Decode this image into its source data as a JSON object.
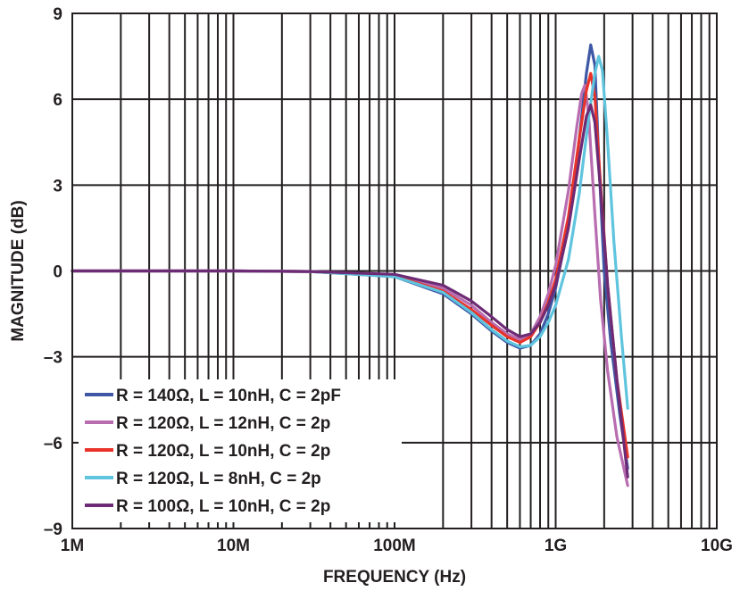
{
  "chart_data": {
    "type": "line",
    "title": "",
    "xlabel": "FREQUENCY (Hz)",
    "ylabel": "MAGNITUDE (dB)",
    "x_scale": "log",
    "xlim": [
      1000000,
      10000000000
    ],
    "ylim": [
      -9,
      9
    ],
    "grid": true,
    "legend_position": "bottom-left",
    "x_ticks": [
      {
        "value": 1000000,
        "label": "1M"
      },
      {
        "value": 10000000,
        "label": "10M"
      },
      {
        "value": 100000000,
        "label": "100M"
      },
      {
        "value": 1000000000,
        "label": "1G"
      },
      {
        "value": 10000000000,
        "label": "10G"
      }
    ],
    "y_ticks": [
      {
        "value": 9,
        "label": "9"
      },
      {
        "value": 6,
        "label": "6"
      },
      {
        "value": 3,
        "label": "3"
      },
      {
        "value": 0,
        "label": "0"
      },
      {
        "value": -3,
        "label": "–3"
      },
      {
        "value": -6,
        "label": "–6"
      },
      {
        "value": -9,
        "label": "–9"
      }
    ],
    "series": [
      {
        "name": "R = 140Ω, L = 10nH, C = 2pF",
        "color": "#3e58a6",
        "points": [
          [
            1000000,
            0
          ],
          [
            10000000,
            0
          ],
          [
            30000000,
            -0.02
          ],
          [
            100000000,
            -0.2
          ],
          [
            200000000,
            -0.8
          ],
          [
            300000000,
            -1.5
          ],
          [
            400000000,
            -2.1
          ],
          [
            500000000,
            -2.5
          ],
          [
            600000000,
            -2.7
          ],
          [
            700000000,
            -2.6
          ],
          [
            800000000,
            -2.2
          ],
          [
            900000000,
            -1.5
          ],
          [
            1000000000,
            -0.6
          ],
          [
            1200000000,
            1.6
          ],
          [
            1400000000,
            4.6
          ],
          [
            1550000000,
            6.9
          ],
          [
            1650000000,
            7.9
          ],
          [
            1750000000,
            7.2
          ],
          [
            1850000000,
            4.0
          ],
          [
            2000000000,
            0.0
          ],
          [
            2200000000,
            -2.5
          ],
          [
            2500000000,
            -5.0
          ],
          [
            2800000000,
            -6.9
          ]
        ]
      },
      {
        "name": "R = 120Ω, L = 12nH, C = 2p",
        "color": "#b86db0",
        "points": [
          [
            1000000,
            0
          ],
          [
            10000000,
            0
          ],
          [
            30000000,
            -0.02
          ],
          [
            100000000,
            -0.15
          ],
          [
            200000000,
            -0.6
          ],
          [
            300000000,
            -1.2
          ],
          [
            400000000,
            -1.8
          ],
          [
            500000000,
            -2.2
          ],
          [
            600000000,
            -2.4
          ],
          [
            700000000,
            -2.2
          ],
          [
            800000000,
            -1.6
          ],
          [
            900000000,
            -0.8
          ],
          [
            1000000000,
            0.2
          ],
          [
            1200000000,
            2.8
          ],
          [
            1350000000,
            5.0
          ],
          [
            1450000000,
            6.2
          ],
          [
            1520000000,
            6.5
          ],
          [
            1600000000,
            5.5
          ],
          [
            1750000000,
            2.0
          ],
          [
            1900000000,
            -1.0
          ],
          [
            2100000000,
            -3.5
          ],
          [
            2400000000,
            -5.8
          ],
          [
            2800000000,
            -7.5
          ]
        ]
      },
      {
        "name": "R = 120Ω, L = 10nH, C = 2p",
        "color": "#e8332a",
        "points": [
          [
            1000000,
            0
          ],
          [
            10000000,
            0
          ],
          [
            30000000,
            -0.02
          ],
          [
            100000000,
            -0.18
          ],
          [
            200000000,
            -0.7
          ],
          [
            300000000,
            -1.35
          ],
          [
            400000000,
            -1.9
          ],
          [
            500000000,
            -2.3
          ],
          [
            600000000,
            -2.5
          ],
          [
            700000000,
            -2.3
          ],
          [
            800000000,
            -1.8
          ],
          [
            900000000,
            -1.1
          ],
          [
            1000000000,
            -0.3
          ],
          [
            1200000000,
            1.9
          ],
          [
            1400000000,
            4.6
          ],
          [
            1550000000,
            6.3
          ],
          [
            1650000000,
            6.9
          ],
          [
            1750000000,
            6.1
          ],
          [
            1900000000,
            3.0
          ],
          [
            2100000000,
            -0.5
          ],
          [
            2400000000,
            -3.8
          ],
          [
            2800000000,
            -6.5
          ]
        ]
      },
      {
        "name": "R = 120Ω, L = 8nH, C = 2p",
        "color": "#5fc4de",
        "points": [
          [
            1000000,
            0
          ],
          [
            10000000,
            0
          ],
          [
            30000000,
            -0.02
          ],
          [
            100000000,
            -0.2
          ],
          [
            200000000,
            -0.75
          ],
          [
            300000000,
            -1.45
          ],
          [
            400000000,
            -2.05
          ],
          [
            500000000,
            -2.45
          ],
          [
            600000000,
            -2.65
          ],
          [
            700000000,
            -2.6
          ],
          [
            800000000,
            -2.3
          ],
          [
            900000000,
            -1.8
          ],
          [
            1000000000,
            -1.2
          ],
          [
            1200000000,
            0.4
          ],
          [
            1400000000,
            2.7
          ],
          [
            1600000000,
            5.3
          ],
          [
            1750000000,
            6.9
          ],
          [
            1850000000,
            7.5
          ],
          [
            1950000000,
            7.0
          ],
          [
            2100000000,
            4.5
          ],
          [
            2300000000,
            1.0
          ],
          [
            2550000000,
            -2.2
          ],
          [
            2800000000,
            -4.8
          ]
        ]
      },
      {
        "name": "R = 100Ω, L = 10nH, C = 2p",
        "color": "#6e2b75",
        "points": [
          [
            1000000,
            0
          ],
          [
            10000000,
            0
          ],
          [
            30000000,
            -0.02
          ],
          [
            100000000,
            -0.12
          ],
          [
            200000000,
            -0.5
          ],
          [
            300000000,
            -1.05
          ],
          [
            400000000,
            -1.6
          ],
          [
            500000000,
            -2.05
          ],
          [
            600000000,
            -2.3
          ],
          [
            700000000,
            -2.2
          ],
          [
            800000000,
            -1.8
          ],
          [
            900000000,
            -1.2
          ],
          [
            1000000000,
            -0.5
          ],
          [
            1200000000,
            1.5
          ],
          [
            1400000000,
            3.9
          ],
          [
            1550000000,
            5.4
          ],
          [
            1650000000,
            5.8
          ],
          [
            1750000000,
            5.2
          ],
          [
            1900000000,
            2.8
          ],
          [
            2100000000,
            -0.5
          ],
          [
            2400000000,
            -3.8
          ],
          [
            2800000000,
            -7.2
          ]
        ]
      }
    ]
  }
}
